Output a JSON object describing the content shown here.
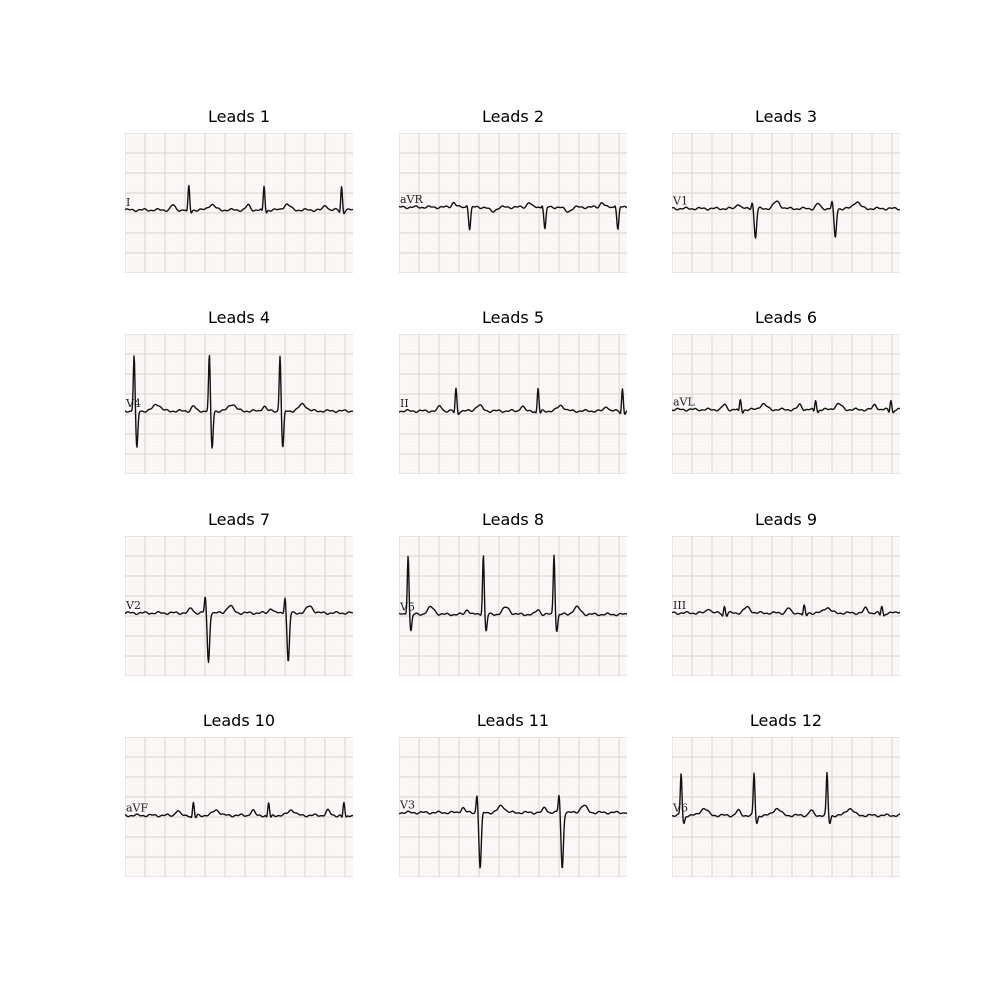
{
  "panels": [
    {
      "title": "Leads 1",
      "code": "I",
      "shape": "upright",
      "beats": [
        0.28,
        0.61,
        0.95
      ],
      "base": 0.55,
      "amp": 0.17,
      "dep": 0.02
    },
    {
      "title": "Leads 2",
      "code": "aVR",
      "shape": "inverted",
      "beats": [
        0.31,
        0.64,
        0.96
      ],
      "base": 0.53,
      "amp": 0.02,
      "dep": 0.16
    },
    {
      "title": "Leads 3",
      "code": "V1",
      "shape": "rS",
      "beats": [
        0.36,
        0.71
      ],
      "base": 0.54,
      "amp": 0.05,
      "dep": 0.21
    },
    {
      "title": "Leads 4",
      "code": "V4",
      "shape": "biphasic",
      "beats": [
        0.04,
        0.37,
        0.68
      ],
      "base": 0.55,
      "amp": 0.4,
      "dep": 0.27
    },
    {
      "title": "Leads 5",
      "code": "II",
      "shape": "upright",
      "beats": [
        0.25,
        0.61,
        0.98
      ],
      "base": 0.55,
      "amp": 0.16,
      "dep": 0.02
    },
    {
      "title": "Leads 6",
      "code": "aVL",
      "shape": "upright",
      "beats": [
        0.3,
        0.63,
        0.96
      ],
      "base": 0.54,
      "amp": 0.07,
      "dep": 0.02
    },
    {
      "title": "Leads 7",
      "code": "V2",
      "shape": "rS",
      "beats": [
        0.36,
        0.71
      ],
      "base": 0.55,
      "amp": 0.12,
      "dep": 0.35
    },
    {
      "title": "Leads 8",
      "code": "V5",
      "shape": "biphasic",
      "beats": [
        0.04,
        0.37,
        0.68
      ],
      "base": 0.56,
      "amp": 0.43,
      "dep": 0.12
    },
    {
      "title": "Leads 9",
      "code": "III",
      "shape": "upright",
      "beats": [
        0.23,
        0.58,
        0.92
      ],
      "base": 0.55,
      "amp": 0.05,
      "dep": 0.02
    },
    {
      "title": "Leads 10",
      "code": "aVF",
      "shape": "upright",
      "beats": [
        0.3,
        0.63,
        0.96
      ],
      "base": 0.56,
      "amp": 0.09,
      "dep": 0.02
    },
    {
      "title": "Leads 11",
      "code": "V3",
      "shape": "rS",
      "beats": [
        0.35,
        0.71
      ],
      "base": 0.54,
      "amp": 0.13,
      "dep": 0.4
    },
    {
      "title": "Leads 12",
      "code": "V6",
      "shape": "biphasic",
      "beats": [
        0.04,
        0.36,
        0.68
      ],
      "base": 0.56,
      "amp": 0.3,
      "dep": 0.06
    }
  ]
}
